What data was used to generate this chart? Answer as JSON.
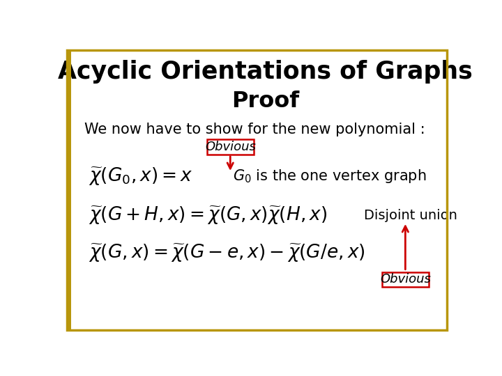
{
  "title": "Acyclic Orientations of Graphs",
  "subtitle": "Proof",
  "intro_text": "We now have to show for the new polynomial :",
  "background_color": "#ffffff",
  "border_color": "#b8960c",
  "title_color": "#000000",
  "subtitle_color": "#000000",
  "text_color": "#000000",
  "red_color": "#cc0000",
  "label_obvious1": "Obvious",
  "label_g0_text": "is the one vertex graph",
  "label_disjoint": "Disjoint union",
  "label_obvious2": "Obvious"
}
